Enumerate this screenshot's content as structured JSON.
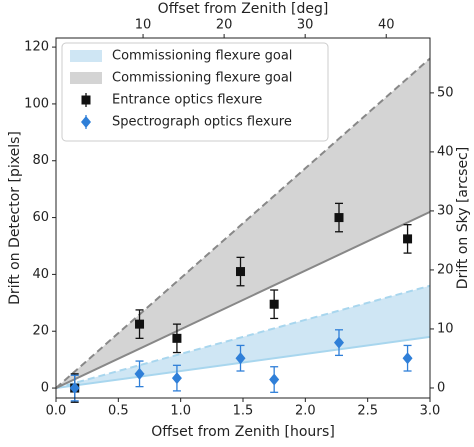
{
  "chart_data": {
    "type": "errorbar",
    "xlabel": "Offset from Zenith [hours]",
    "ylabel": "Drift on Detector [pixels]",
    "x2label": "Offset from Zenith [deg]",
    "y2label": "Drift on Sky [arcsec]",
    "xlim": [
      0,
      3
    ],
    "xticks": [
      {
        "value": 0,
        "label": "0.0"
      },
      0.5,
      {
        "value": 1,
        "label": "1.0"
      },
      1.5,
      {
        "value": 2,
        "label": "2.0"
      },
      2.5,
      {
        "value": 3,
        "label": "3.0"
      }
    ],
    "ylim": [
      -3.5,
      123.2
    ],
    "yticks": [
      0,
      20,
      40,
      60,
      80,
      100,
      120
    ],
    "x2lim": [
      -0.74,
      45.4
    ],
    "x2ticks": [
      10,
      20,
      30,
      40
    ],
    "y2lim": [
      -1.7,
      59.3
    ],
    "y2ticks": [
      0,
      10,
      20,
      30,
      40,
      50
    ],
    "bands": [
      {
        "name": "Commissioning flexure goal",
        "color": "#cfe6f4",
        "line_color": "#a8d6ee",
        "x": [
          0,
          3
        ],
        "upper": [
          0,
          36
        ],
        "lower": [
          0,
          18
        ]
      },
      {
        "name": "Commissioning flexure goal",
        "color": "#d4d4d4",
        "line_color": "#888888",
        "x": [
          0,
          3
        ],
        "upper": [
          0,
          116
        ],
        "lower": [
          0,
          62
        ]
      }
    ],
    "series": [
      {
        "name": "Entrance optics flexure",
        "color": "#111111",
        "marker": "square",
        "x": [
          0.15,
          0.67,
          0.97,
          1.48,
          1.75,
          2.27,
          2.82
        ],
        "values": [
          0,
          22.5,
          17.5,
          41,
          29.5,
          60,
          52.5
        ],
        "errors": [
          5,
          5,
          5,
          5,
          5,
          5,
          5
        ]
      },
      {
        "name": "Spectrograph optics flexure",
        "color": "#2f7fd8",
        "marker": "diamond",
        "x": [
          0.15,
          0.67,
          0.97,
          1.48,
          1.75,
          2.27,
          2.82
        ],
        "values": [
          0,
          5,
          3.5,
          10.5,
          3,
          16,
          10.5
        ],
        "errors": [
          4.5,
          4.5,
          4.5,
          4.5,
          4.5,
          4.5,
          4.5
        ]
      }
    ]
  }
}
